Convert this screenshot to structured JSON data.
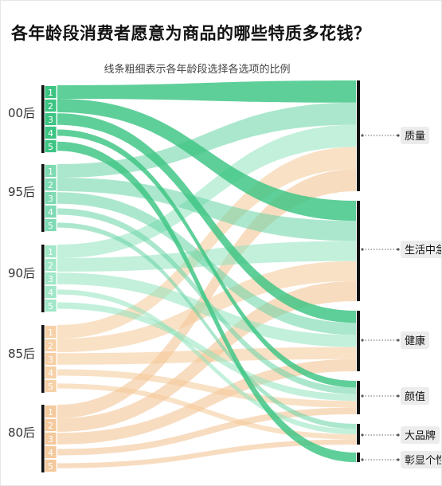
{
  "title": "各年龄段消费者愿意为商品的哪些特质多花钱？",
  "subtitle": "线条粗细表示各年龄段选择各选项的比例",
  "chart_data": {
    "type": "sankey",
    "title": "各年龄段消费者愿意为商品的哪些特质多花钱？",
    "subtitle": "线条粗细表示各年龄段选择各选项的比例",
    "rank_labels": [
      "1",
      "2",
      "3",
      "4",
      "5"
    ],
    "sources": [
      {
        "name": "00后",
        "color": "#3cc483",
        "opacity": 0.82
      },
      {
        "name": "95后",
        "color": "#66d4a4",
        "opacity": 0.55
      },
      {
        "name": "90后",
        "color": "#8fe3bd",
        "opacity": 0.55
      },
      {
        "name": "85后",
        "color": "#f4c896",
        "opacity": 0.55
      },
      {
        "name": "80后",
        "color": "#f2c08c",
        "opacity": 0.55
      }
    ],
    "targets": [
      "质量",
      "生活中急需",
      "健康",
      "颜值",
      "大品牌",
      "彰显个性"
    ],
    "flows": {
      "00后": [
        "质量",
        "生活中急需",
        "健康",
        "颜值",
        "彰显个性"
      ],
      "95后": [
        "质量",
        "生活中急需",
        "健康",
        "颜值",
        "大品牌"
      ],
      "90后": [
        "质量",
        "生活中急需",
        "健康",
        "大品牌",
        "颜值"
      ],
      "85后": [
        "质量",
        "生活中急需",
        "健康",
        "颜值",
        "大品牌"
      ],
      "80后": [
        "质量",
        "生活中急需",
        "健康",
        "颜值",
        "大品牌"
      ]
    }
  }
}
